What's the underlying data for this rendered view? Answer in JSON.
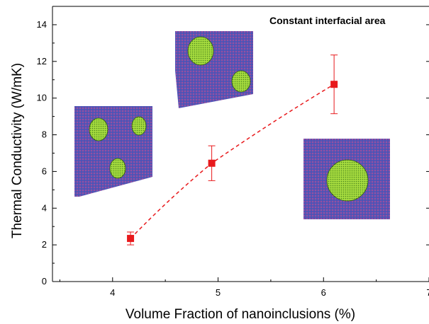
{
  "chart_data": {
    "type": "scatter",
    "title": "",
    "annotation": "Constant interfacial area",
    "xlabel": "Volume Fraction of nanoinclusions (%)",
    "ylabel": "Thermal Conductivity (W/mK)",
    "xlim": [
      3.43,
      7.0
    ],
    "ylim": [
      0,
      15
    ],
    "xticks": [
      4,
      5,
      6,
      7
    ],
    "xtick_labels": [
      "4",
      "5",
      "6",
      "7"
    ],
    "yticks": [
      0,
      2,
      4,
      6,
      8,
      10,
      12,
      14
    ],
    "ytick_labels": [
      "0",
      "2",
      "4",
      "6",
      "8",
      "10",
      "12",
      "14"
    ],
    "grid": false,
    "legend": "none",
    "series": [
      {
        "x": [
          4.17,
          4.94,
          6.1
        ],
        "y": [
          2.35,
          6.45,
          10.75
        ],
        "yerr_low": [
          0.35,
          0.95,
          1.6
        ],
        "yerr_high": [
          0.35,
          0.95,
          1.6
        ],
        "color": "#e8191c",
        "fit_line": "dashed",
        "fit_color": "#e8191c"
      }
    ],
    "insets": [
      {
        "name": "three-small-inclusions",
        "color_matrix": "#6a5aa8",
        "color_inclusion": "#9fd63a"
      },
      {
        "name": "two-medium-inclusions",
        "color_matrix": "#6a5aa8",
        "color_inclusion": "#9fd63a"
      },
      {
        "name": "one-large-inclusion",
        "color_matrix": "#6a5aa8",
        "color_inclusion": "#9fd63a"
      }
    ]
  }
}
